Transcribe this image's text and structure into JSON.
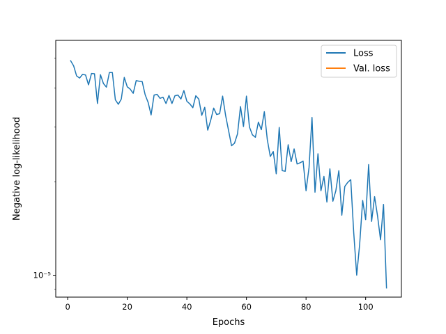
{
  "chart_data": {
    "type": "line",
    "xlabel": "Epochs",
    "ylabel": "Negative log-likelihood",
    "xlim": [
      -4,
      112
    ],
    "ylim": [
      8.5e-06,
      5.7e-05
    ],
    "yscale": "log",
    "grid": false,
    "legend_placement": "top-right",
    "xticks": [
      0,
      20,
      40,
      60,
      80,
      100
    ],
    "xtick_labels": [
      "0",
      "20",
      "40",
      "60",
      "80",
      "100"
    ],
    "yticks": [
      1e-05
    ],
    "ytick_labels": [
      "10⁻⁵"
    ],
    "series": [
      {
        "name": "Loss",
        "color": "#1f77b4",
        "x": [
          1,
          2,
          3,
          4,
          5,
          6,
          7,
          8,
          9,
          10,
          11,
          12,
          13,
          14,
          15,
          16,
          17,
          18,
          19,
          20,
          21,
          22,
          23,
          24,
          25,
          26,
          27,
          28,
          29,
          30,
          31,
          32,
          33,
          34,
          35,
          36,
          37,
          38,
          39,
          40,
          41,
          42,
          43,
          44,
          45,
          46,
          47,
          48,
          49,
          50,
          51,
          52,
          53,
          54,
          55,
          56,
          57,
          58,
          59,
          60,
          61,
          62,
          63,
          64,
          65,
          66,
          67,
          68,
          69,
          70,
          71,
          72,
          73,
          74,
          75,
          76,
          77,
          78,
          79,
          80,
          81,
          82,
          83,
          84,
          85,
          86,
          87,
          88,
          89,
          90,
          91,
          92,
          93,
          94,
          95,
          96,
          97,
          98,
          99,
          100,
          101,
          102,
          103,
          104,
          105,
          106,
          107
        ],
        "y": [
          4.9e-05,
          4.72e-05,
          4.38e-05,
          4.31e-05,
          4.43e-05,
          4.41e-05,
          4.1e-05,
          4.46e-05,
          4.45e-05,
          3.57e-05,
          4.42e-05,
          4.14e-05,
          4.03e-05,
          4.49e-05,
          4.49e-05,
          3.67e-05,
          3.55e-05,
          3.69e-05,
          4.33e-05,
          4.04e-05,
          3.97e-05,
          3.85e-05,
          4.23e-05,
          4.21e-05,
          4.2e-05,
          3.81e-05,
          3.6e-05,
          3.28e-05,
          3.8e-05,
          3.82e-05,
          3.71e-05,
          3.74e-05,
          3.57e-05,
          3.79e-05,
          3.57e-05,
          3.78e-05,
          3.8e-05,
          3.69e-05,
          3.93e-05,
          3.63e-05,
          3.56e-05,
          3.46e-05,
          3.78e-05,
          3.69e-05,
          3.27e-05,
          3.47e-05,
          2.93e-05,
          3.15e-05,
          3.45e-05,
          3.29e-05,
          3.31e-05,
          3.77e-05,
          3.27e-05,
          2.92e-05,
          2.61e-05,
          2.66e-05,
          2.85e-05,
          3.49e-05,
          3.01e-05,
          3.77e-05,
          3e-05,
          2.83e-05,
          2.78e-05,
          3.11e-05,
          2.94e-05,
          3.36e-05,
          2.73e-05,
          2.41e-05,
          2.5e-05,
          2.12e-05,
          2.99e-05,
          2.17e-05,
          2.16e-05,
          2.63e-05,
          2.32e-05,
          2.55e-05,
          2.28e-05,
          2.3e-05,
          2.33e-05,
          1.87e-05,
          2.22e-05,
          3.22e-05,
          1.85e-05,
          2.46e-05,
          1.87e-05,
          2.08e-05,
          1.72e-05,
          2.2e-05,
          1.73e-05,
          1.87e-05,
          2.17e-05,
          1.56e-05,
          1.93e-05,
          1.99e-05,
          2.03e-05,
          1.37e-05,
          1e-05,
          1.26e-05,
          1.74e-05,
          1.51e-05,
          2.27e-05,
          1.49e-05,
          1.79e-05,
          1.55e-05,
          1.3e-05,
          1.69e-05,
          9.1e-06
        ]
      },
      {
        "name": "Val. loss",
        "color": "#ff7f0e",
        "x": [],
        "y": []
      }
    ]
  }
}
